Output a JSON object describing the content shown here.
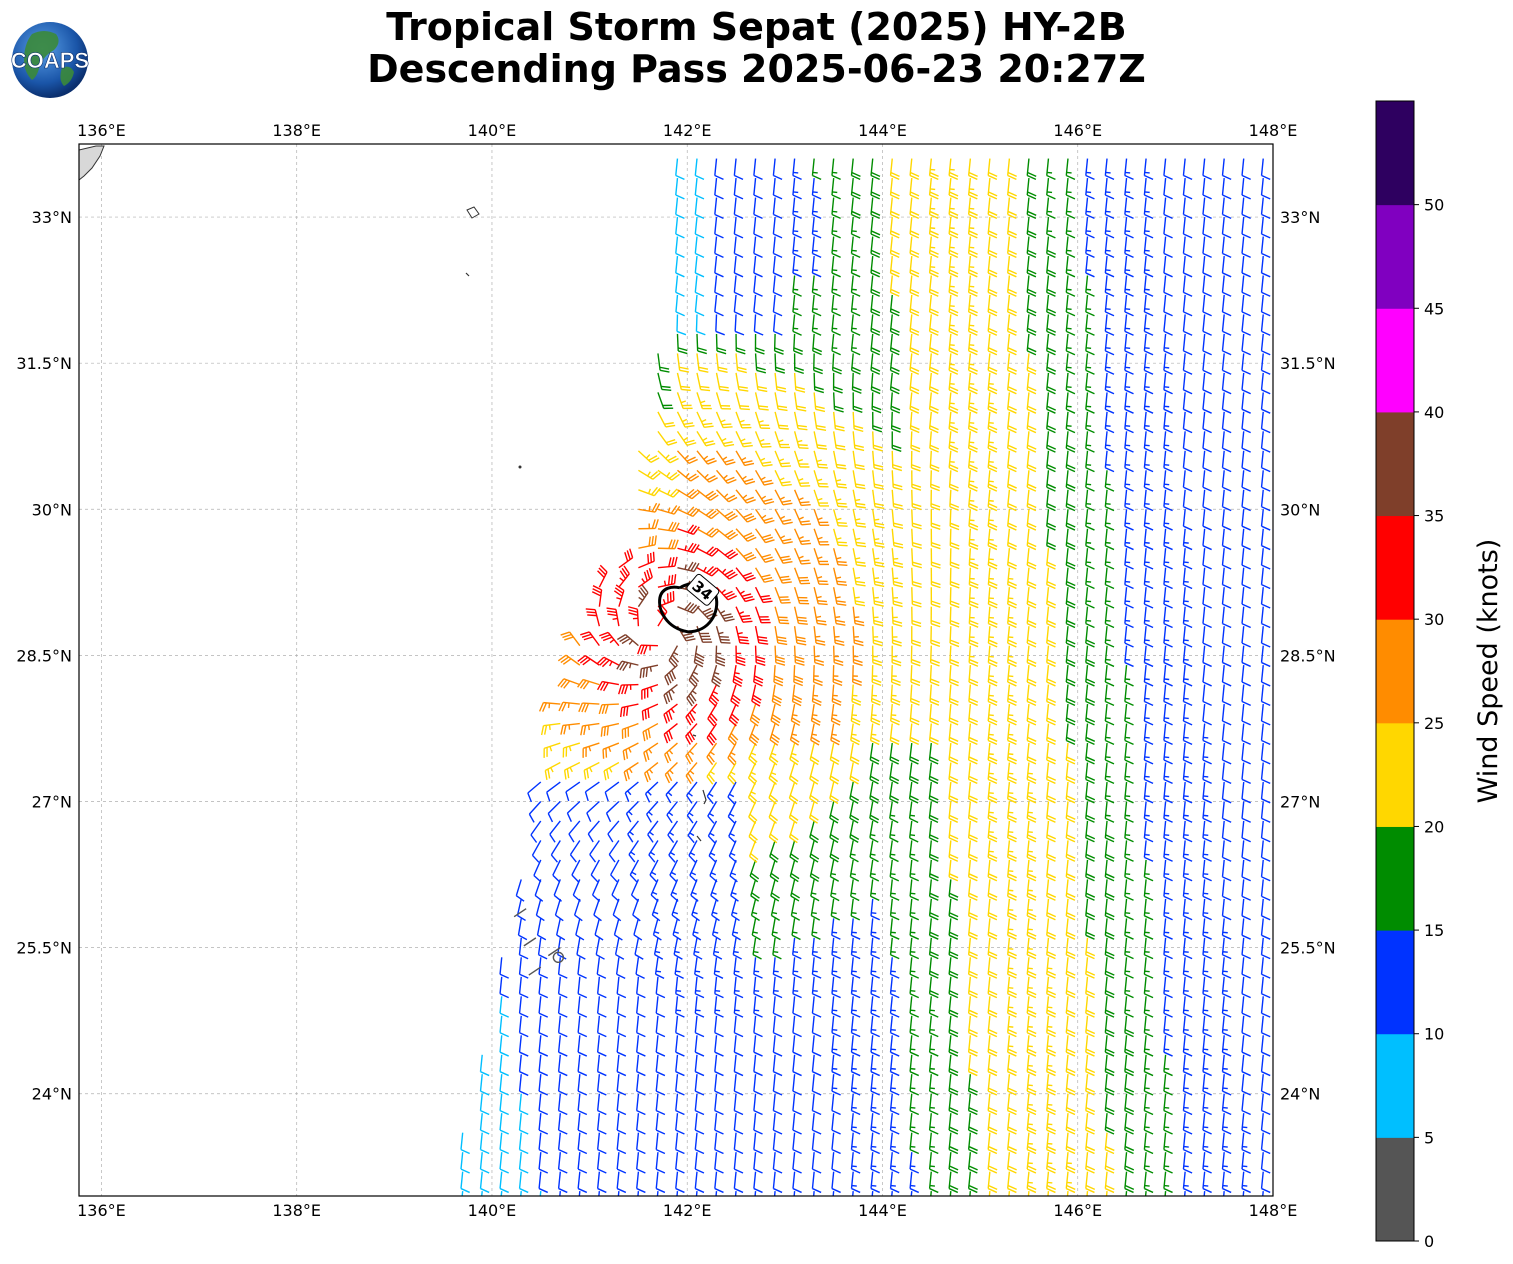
{
  "title": {
    "line1": "Tropical Storm Sepat (2025) HY-2B",
    "line2": "Descending Pass 2025-06-23 20:27Z"
  },
  "logo": {
    "text": "COAPS",
    "icon": "globe-logo"
  },
  "map": {
    "lon_range": [
      135.77,
      148.0
    ],
    "lat_range": [
      22.95,
      33.75
    ],
    "lon_ticks": [
      {
        "value": 136,
        "label": "136°E"
      },
      {
        "value": 138,
        "label": "138°E"
      },
      {
        "value": 140,
        "label": "140°E"
      },
      {
        "value": 142,
        "label": "142°E"
      },
      {
        "value": 144,
        "label": "144°E"
      },
      {
        "value": 146,
        "label": "146°E"
      },
      {
        "value": 148,
        "label": "148°E"
      }
    ],
    "lat_ticks": [
      {
        "value": 24,
        "label": "24°N"
      },
      {
        "value": 25.5,
        "label": "25.5°N"
      },
      {
        "value": 27,
        "label": "27°N"
      },
      {
        "value": 28.5,
        "label": "28.5°N"
      },
      {
        "value": 30,
        "label": "30°N"
      },
      {
        "value": 31.5,
        "label": "31.5°N"
      },
      {
        "value": 33,
        "label": "33°N"
      }
    ],
    "grid": true,
    "storm_center": {
      "lon": 141.75,
      "lat": 28.75
    },
    "contour": {
      "label": "34",
      "lon": 142.15,
      "lat": 29.05
    }
  },
  "colorbar": {
    "label": "Wind Speed (knots)",
    "ticks": [
      "0",
      "5",
      "10",
      "15",
      "20",
      "25",
      "30",
      "35",
      "40",
      "45",
      "50"
    ],
    "bins": [
      {
        "min": 0,
        "max": 5,
        "color": "#555555"
      },
      {
        "min": 5,
        "max": 10,
        "color": "#00bfff"
      },
      {
        "min": 10,
        "max": 15,
        "color": "#0033ff"
      },
      {
        "min": 15,
        "max": 20,
        "color": "#008c00"
      },
      {
        "min": 20,
        "max": 25,
        "color": "#ffd700"
      },
      {
        "min": 25,
        "max": 30,
        "color": "#ff8c00"
      },
      {
        "min": 30,
        "max": 35,
        "color": "#ff0000"
      },
      {
        "min": 35,
        "max": 40,
        "color": "#7f3f2a"
      },
      {
        "min": 40,
        "max": 45,
        "color": "#ff00ff"
      },
      {
        "min": 45,
        "max": 50,
        "color": "#8000c0"
      },
      {
        "min": 50,
        "max": 55,
        "color": "#2e0060"
      }
    ]
  },
  "colors": {
    "grid": "#b0b0b0",
    "coast": "#333333",
    "contour": "#000000"
  }
}
